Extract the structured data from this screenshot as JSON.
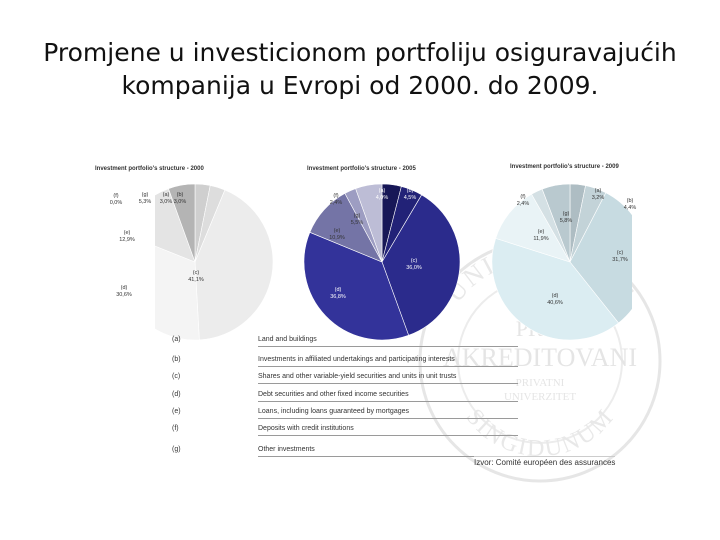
{
  "slide": {
    "title_line1": "Promjene u investicionom portfoliju osiguravajućih",
    "title_line2": "kompanija u Evropi od 2000. do 2009."
  },
  "watermark": {
    "arc_top": "UNIVERZITET",
    "line1": "PRVI",
    "line2": "AKREDITOVANI",
    "line3": "PRIVATNI",
    "line4": "UNIVERZITET",
    "arc_bottom": "SINGIDUNUM"
  },
  "legend": [
    {
      "key": "(a)",
      "label": "Land and buildings"
    },
    {
      "key": "(b)",
      "label": "Investments in affiliated undertakings and participating interests"
    },
    {
      "key": "(c)",
      "label": "Shares and other variable-yield securities and units in unit trusts"
    },
    {
      "key": "(d)",
      "label": "Debt securities and other fixed income securities"
    },
    {
      "key": "(e)",
      "label": "Loans, including loans guaranteed by mortgages"
    },
    {
      "key": "(f)",
      "label": "Deposits with credit institutions"
    },
    {
      "key": "(g)",
      "label": "Other investments"
    }
  ],
  "source": "Izvor: Comité européen des assurances",
  "chart_data": [
    {
      "type": "pie",
      "title": "Investment portfolio's structure - 2000",
      "palette": [
        "#cfcfcf",
        "#dddddd",
        "#ececec",
        "#f4f4f4",
        "#e4e4e4",
        "#c4c4c4",
        "#b4b4b4"
      ],
      "slices": [
        {
          "key": "(a)",
          "value": 3.0,
          "label": "3,0%"
        },
        {
          "key": "(b)",
          "value": 3.0,
          "label": "3,0%"
        },
        {
          "key": "(c)",
          "value": 41.1,
          "label": "41,1%"
        },
        {
          "key": "(d)",
          "value": 30.6,
          "label": "30,6%"
        },
        {
          "key": "(e)",
          "value": 12.9,
          "label": "12,9%"
        },
        {
          "key": "(f)",
          "value": 0.0,
          "label": "0,0%"
        },
        {
          "key": "(g)",
          "value": 5.3,
          "label": "5,3%"
        }
      ]
    },
    {
      "type": "pie",
      "title": "Investment portfolio's structure - 2005",
      "palette": [
        "#171757",
        "#222277",
        "#2b2b8c",
        "#33339a",
        "#7474a6",
        "#9d9dc2",
        "#bdbdd6"
      ],
      "slices": [
        {
          "key": "(a)",
          "value": 4.0,
          "label": "4,0%"
        },
        {
          "key": "(b)",
          "value": 4.5,
          "label": "4,5%"
        },
        {
          "key": "(c)",
          "value": 36.0,
          "label": "36,0%"
        },
        {
          "key": "(d)",
          "value": 36.8,
          "label": "36,8%"
        },
        {
          "key": "(e)",
          "value": 10.9,
          "label": "10,9%"
        },
        {
          "key": "(f)",
          "value": 2.4,
          "label": "2,4%"
        },
        {
          "key": "(g)",
          "value": 5.5,
          "label": "5,5%"
        }
      ]
    },
    {
      "type": "pie",
      "title": "Investment portfolio's structure - 2009",
      "palette": [
        "#aebdc3",
        "#c3d3d8",
        "#c7dbe1",
        "#dbedf2",
        "#e9f3f6",
        "#d4e0e4",
        "#b9c9cf"
      ],
      "slices": [
        {
          "key": "(a)",
          "value": 3.2,
          "label": "3,2%"
        },
        {
          "key": "(b)",
          "value": 4.4,
          "label": "4,4%"
        },
        {
          "key": "(c)",
          "value": 31.7,
          "label": "31,7%"
        },
        {
          "key": "(d)",
          "value": 40.6,
          "label": "40,6%"
        },
        {
          "key": "(e)",
          "value": 11.9,
          "label": "11,9%"
        },
        {
          "key": "(f)",
          "value": 2.4,
          "label": "2,4%"
        },
        {
          "key": "(g)",
          "value": 5.8,
          "label": "5,8%"
        }
      ]
    }
  ]
}
